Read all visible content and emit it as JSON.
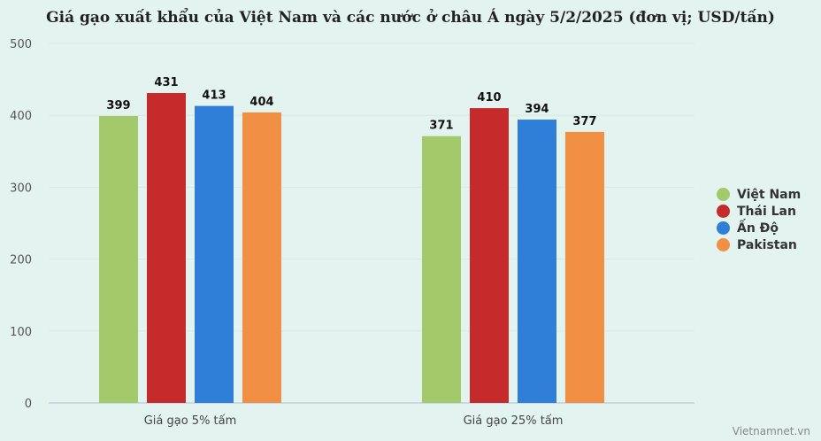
{
  "chart_data": {
    "type": "bar",
    "title": "Giá gạo xuất khẩu của Việt Nam và các nước ở châu Á ngày 5/2/2025 (đơn vị; USD/tấn)",
    "categories": [
      "Giá gạo 5% tấm",
      "Giá gạo 25% tấm"
    ],
    "series": [
      {
        "name": "Việt Nam",
        "color": "#a3c96a",
        "values": [
          399,
          371
        ]
      },
      {
        "name": "Thái Lan",
        "color": "#c62b2b",
        "values": [
          431,
          410
        ]
      },
      {
        "name": "Ấn Độ",
        "color": "#2f7fd8",
        "values": [
          413,
          394
        ]
      },
      {
        "name": "Pakistan",
        "color": "#f18f45",
        "values": [
          404,
          377
        ]
      }
    ],
    "ylim": [
      0,
      500
    ],
    "yticks": [
      0,
      100,
      200,
      300,
      400,
      500
    ],
    "xlabel": "",
    "ylabel": "",
    "grid": true,
    "legend_position": "right"
  },
  "source": "Vietnamnet.vn"
}
